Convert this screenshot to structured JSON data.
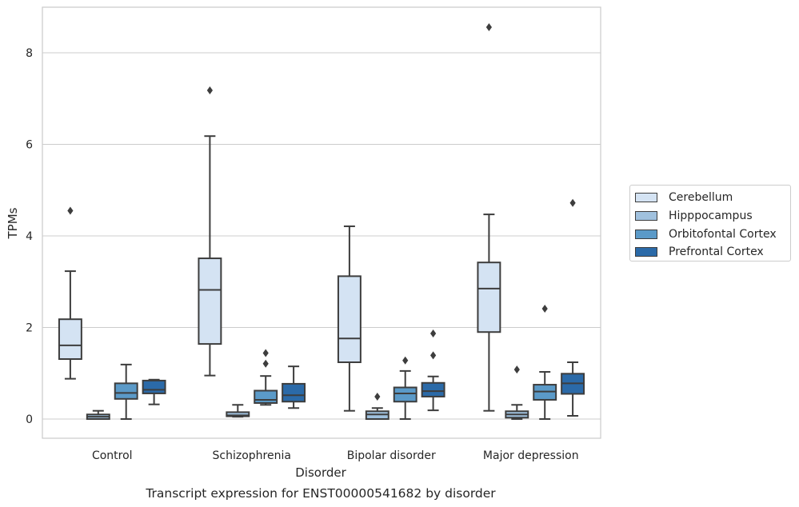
{
  "chart_data": {
    "type": "box",
    "title": "Transcript expression for ENST00000541682 by disorder",
    "xlabel": "Disorder",
    "ylabel": "TPMs",
    "ylim": [
      -0.4,
      9.0
    ],
    "yticks": [
      0,
      2,
      4,
      6,
      8
    ],
    "grid": "horizontal",
    "legend_position": "right",
    "categories": [
      "Control",
      "Schizophrenia",
      "Bipolar disorder",
      "Major depression"
    ],
    "series": [
      {
        "name": "Cerebellum",
        "color": "#d4e3f3",
        "boxes": [
          {
            "whislo": 0.88,
            "q1": 1.31,
            "med": 1.61,
            "q3": 2.18,
            "whishi": 3.23,
            "fliers": [
              4.55
            ]
          },
          {
            "whislo": 0.95,
            "q1": 1.64,
            "med": 2.82,
            "q3": 3.51,
            "whishi": 6.18,
            "fliers": [
              7.18
            ]
          },
          {
            "whislo": 0.18,
            "q1": 1.24,
            "med": 1.76,
            "q3": 3.12,
            "whishi": 4.21,
            "fliers": []
          },
          {
            "whislo": 0.18,
            "q1": 1.9,
            "med": 2.85,
            "q3": 3.42,
            "whishi": 4.47,
            "fliers": [
              8.56
            ]
          }
        ]
      },
      {
        "name": "Hipppocampus",
        "color": "#a0c1de",
        "boxes": [
          {
            "whislo": 0.0,
            "q1": 0.0,
            "med": 0.05,
            "q3": 0.1,
            "whishi": 0.18,
            "fliers": []
          },
          {
            "whislo": 0.05,
            "q1": 0.06,
            "med": 0.08,
            "q3": 0.15,
            "whishi": 0.31,
            "fliers": []
          },
          {
            "whislo": 0.0,
            "q1": 0.0,
            "med": 0.1,
            "q3": 0.17,
            "whishi": 0.24,
            "fliers": [
              0.49
            ]
          },
          {
            "whislo": 0.0,
            "q1": 0.03,
            "med": 0.1,
            "q3": 0.17,
            "whishi": 0.31,
            "fliers": [
              1.08
            ]
          }
        ]
      },
      {
        "name": "Orbitofontal Cortex",
        "color": "#5b9ac8",
        "boxes": [
          {
            "whislo": 0.0,
            "q1": 0.44,
            "med": 0.57,
            "q3": 0.78,
            "whishi": 1.19,
            "fliers": []
          },
          {
            "whislo": 0.31,
            "q1": 0.35,
            "med": 0.42,
            "q3": 0.62,
            "whishi": 0.94,
            "fliers": [
              1.21,
              1.44
            ]
          },
          {
            "whislo": 0.0,
            "q1": 0.38,
            "med": 0.56,
            "q3": 0.69,
            "whishi": 1.05,
            "fliers": [
              1.28
            ]
          },
          {
            "whislo": 0.0,
            "q1": 0.42,
            "med": 0.6,
            "q3": 0.75,
            "whishi": 1.03,
            "fliers": [
              2.41
            ]
          }
        ]
      },
      {
        "name": "Prefrontal Cortex",
        "color": "#2b6aa8",
        "boxes": [
          {
            "whislo": 0.32,
            "q1": 0.56,
            "med": 0.64,
            "q3": 0.84,
            "whishi": 0.86,
            "fliers": []
          },
          {
            "whislo": 0.24,
            "q1": 0.38,
            "med": 0.52,
            "q3": 0.77,
            "whishi": 1.15,
            "fliers": []
          },
          {
            "whislo": 0.19,
            "q1": 0.49,
            "med": 0.61,
            "q3": 0.79,
            "whishi": 0.93,
            "fliers": [
              1.39,
              1.87
            ]
          },
          {
            "whislo": 0.07,
            "q1": 0.55,
            "med": 0.78,
            "q3": 0.99,
            "whishi": 1.24,
            "fliers": [
              4.72
            ]
          }
        ]
      }
    ]
  }
}
